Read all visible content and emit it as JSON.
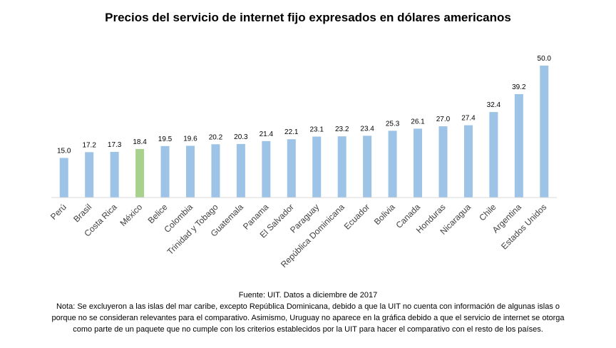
{
  "chart_data": {
    "type": "bar",
    "title": "Precios del servicio de internet fijo expresados en dólares americanos",
    "xlabel": "",
    "ylabel": "",
    "ylim": [
      0,
      50
    ],
    "grid": false,
    "legend": "none",
    "categories": [
      "Perú",
      "Brasil",
      "Costa Rica",
      "México",
      "Belice",
      "Colombia",
      "Trinidad y Tobago",
      "Guatemala",
      "Panama",
      "El Salvador",
      "Paraguay",
      "República Dominicana",
      "Ecuador",
      "Bolivia",
      "Canada",
      "Honduras",
      "Nicaragua",
      "Chile",
      "Argentina",
      "Estados Unidos"
    ],
    "values": [
      15.0,
      17.2,
      17.3,
      18.4,
      19.5,
      19.6,
      20.2,
      20.3,
      21.4,
      22.1,
      23.1,
      23.2,
      23.4,
      25.3,
      26.1,
      27.0,
      27.4,
      32.4,
      39.2,
      50.0
    ],
    "value_labels": [
      "15.0",
      "17.2",
      "17.3",
      "18.4",
      "19.5",
      "19.6",
      "20.2",
      "20.3",
      "21.4",
      "22.1",
      "23.1",
      "23.2",
      "23.4",
      "25.3",
      "26.1",
      "27.0",
      "27.4",
      "32.4",
      "39.2",
      "50.0"
    ],
    "highlight_category": "México",
    "colors": {
      "bar": "#9dc3e6",
      "highlight": "#a9d18e",
      "axis": "#d9d9d9"
    }
  },
  "footer": {
    "source": "Fuente: UIT. Datos a diciembre de 2017",
    "note_lines": [
      "Nota: Se excluyeron a las islas del mar caribe, excepto República Dominicana, debido a que la UIT no cuenta con información de algunas islas o",
      "porque no se consideran relevantes para el comparativo. Asimismo, Uruguay no aparece en la gráfica debido a que el servicio de internet se otorga",
      "como parte de un paquete que no cumple con los criterios establecidos por la UIT para hacer el comparativo con el resto de los países."
    ]
  }
}
